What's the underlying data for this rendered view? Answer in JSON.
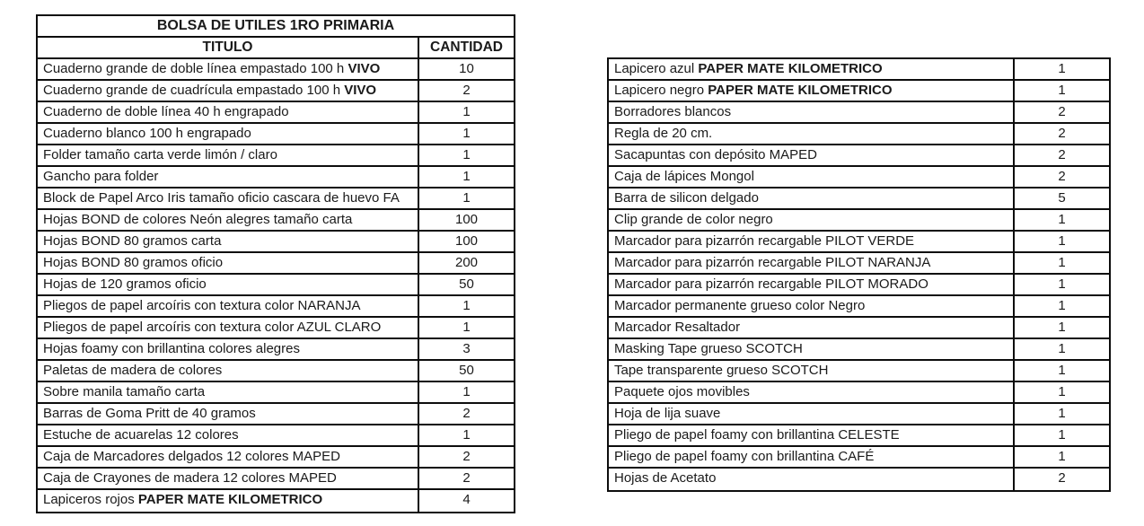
{
  "page": {
    "background_color": "#ffffff",
    "border_color": "#0d0d0d",
    "text_color": "#1a1a1a"
  },
  "left_table": {
    "title": "BOLSA DE UTILES 1RO PRIMARIA",
    "columns": [
      "TITULO",
      "CANTIDAD"
    ],
    "rows": [
      {
        "pre": "Cuaderno grande de doble línea empastado 100 h ",
        "bold": "VIVO",
        "qty": "10"
      },
      {
        "pre": "Cuaderno grande de cuadrícula empastado 100 h ",
        "bold": "VIVO",
        "qty": "2"
      },
      {
        "pre": "Cuaderno de doble línea 40 h engrapado",
        "bold": "",
        "qty": "1"
      },
      {
        "pre": "Cuaderno blanco 100 h engrapado",
        "bold": "",
        "qty": "1"
      },
      {
        "pre": "Folder tamaño carta verde limón / claro",
        "bold": "",
        "qty": "1"
      },
      {
        "pre": "Gancho para folder",
        "bold": "",
        "qty": "1"
      },
      {
        "pre": "Block de Papel Arco Iris tamaño oficio cascara de huevo FA",
        "bold": "",
        "qty": "1"
      },
      {
        "pre": "Hojas BOND de colores Neón alegres tamaño carta",
        "bold": "",
        "qty": "100"
      },
      {
        "pre": "Hojas BOND 80 gramos carta",
        "bold": "",
        "qty": "100"
      },
      {
        "pre": "Hojas BOND 80 gramos oficio",
        "bold": "",
        "qty": "200"
      },
      {
        "pre": "Hojas de 120 gramos oficio",
        "bold": "",
        "qty": "50"
      },
      {
        "pre": "Pliegos de papel arcoíris con textura color NARANJA",
        "bold": "",
        "qty": "1"
      },
      {
        "pre": "Pliegos de papel arcoíris con textura color AZUL CLARO",
        "bold": "",
        "qty": "1"
      },
      {
        "pre": "Hojas foamy con brillantina colores alegres",
        "bold": "",
        "qty": "3"
      },
      {
        "pre": "Paletas de madera de colores",
        "bold": "",
        "qty": "50"
      },
      {
        "pre": "Sobre manila tamaño carta",
        "bold": "",
        "qty": "1"
      },
      {
        "pre": "Barras de Goma Pritt de 40 gramos",
        "bold": "",
        "qty": "2"
      },
      {
        "pre": "Estuche de acuarelas 12 colores",
        "bold": "",
        "qty": "1"
      },
      {
        "pre": "Caja de Marcadores delgados 12 colores MAPED",
        "bold": "",
        "qty": "2"
      },
      {
        "pre": "Caja de Crayones de madera 12 colores MAPED",
        "bold": "",
        "qty": "2"
      },
      {
        "pre": "Lapiceros rojos ",
        "bold": "PAPER MATE KILOMETRICO",
        "qty": "4"
      }
    ]
  },
  "right_table": {
    "rows": [
      {
        "pre": "Lapicero azul ",
        "bold": "PAPER MATE KILOMETRICO",
        "qty": "1"
      },
      {
        "pre": "Lapicero negro ",
        "bold": "PAPER MATE KILOMETRICO",
        "qty": "1"
      },
      {
        "pre": "Borradores blancos",
        "bold": "",
        "qty": "2"
      },
      {
        "pre": "Regla de 20 cm.",
        "bold": "",
        "qty": "2"
      },
      {
        "pre": "Sacapuntas con depósito MAPED",
        "bold": "",
        "qty": "2"
      },
      {
        "pre": "Caja de lápices Mongol",
        "bold": "",
        "qty": "2"
      },
      {
        "pre": "Barra de silicon delgado",
        "bold": "",
        "qty": "5"
      },
      {
        "pre": "Clip grande de color negro",
        "bold": "",
        "qty": "1"
      },
      {
        "pre": "Marcador para pizarrón recargable PILOT VERDE",
        "bold": "",
        "qty": "1"
      },
      {
        "pre": "Marcador para pizarrón recargable PILOT NARANJA",
        "bold": "",
        "qty": "1"
      },
      {
        "pre": "Marcador para pizarrón recargable PILOT MORADO",
        "bold": "",
        "qty": "1"
      },
      {
        "pre": "Marcador permanente grueso color Negro",
        "bold": "",
        "qty": "1"
      },
      {
        "pre": "Marcador Resaltador",
        "bold": "",
        "qty": "1"
      },
      {
        "pre": "Masking Tape grueso SCOTCH",
        "bold": "",
        "qty": "1"
      },
      {
        "pre": "Tape transparente grueso SCOTCH",
        "bold": "",
        "qty": "1"
      },
      {
        "pre": "Paquete ojos movibles",
        "bold": "",
        "qty": "1"
      },
      {
        "pre": "Hoja de lija suave",
        "bold": "",
        "qty": "1"
      },
      {
        "pre": "Pliego de papel foamy con brillantina CELESTE",
        "bold": "",
        "qty": "1"
      },
      {
        "pre": "Pliego de papel foamy con brillantina CAFÉ",
        "bold": "",
        "qty": "1"
      },
      {
        "pre": "Hojas de Acetato",
        "bold": "",
        "qty": "2"
      }
    ]
  }
}
